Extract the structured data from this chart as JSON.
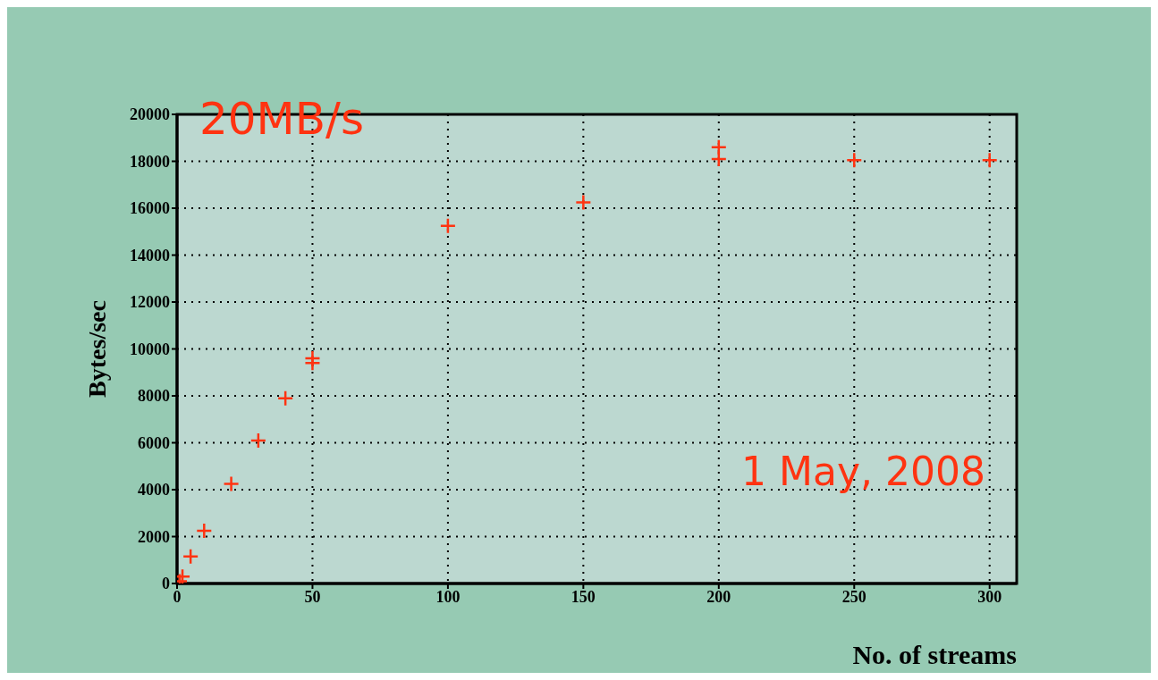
{
  "chart_data": {
    "type": "scatter",
    "xlabel": "No. of streams",
    "ylabel": "Bytes/sec",
    "annotations": [
      "20MB/s",
      "1 May, 2008"
    ],
    "x": [
      1,
      2,
      5,
      10,
      20,
      30,
      40,
      50,
      50,
      100,
      150,
      200,
      200,
      250,
      300
    ],
    "values": [
      100,
      300,
      1150,
      2250,
      4250,
      6100,
      7900,
      9400,
      9600,
      15250,
      16250,
      18100,
      18600,
      18050,
      18050
    ],
    "color": "#ff3311",
    "marker": "cross",
    "xlim": [
      0,
      310
    ],
    "xticks": [
      0,
      50,
      100,
      150,
      200,
      250,
      300
    ],
    "ylim": [
      0,
      20000
    ],
    "yticks": [
      0,
      2000,
      4000,
      6000,
      8000,
      10000,
      12000,
      14000,
      16000,
      18000,
      20000
    ],
    "grid": true
  }
}
